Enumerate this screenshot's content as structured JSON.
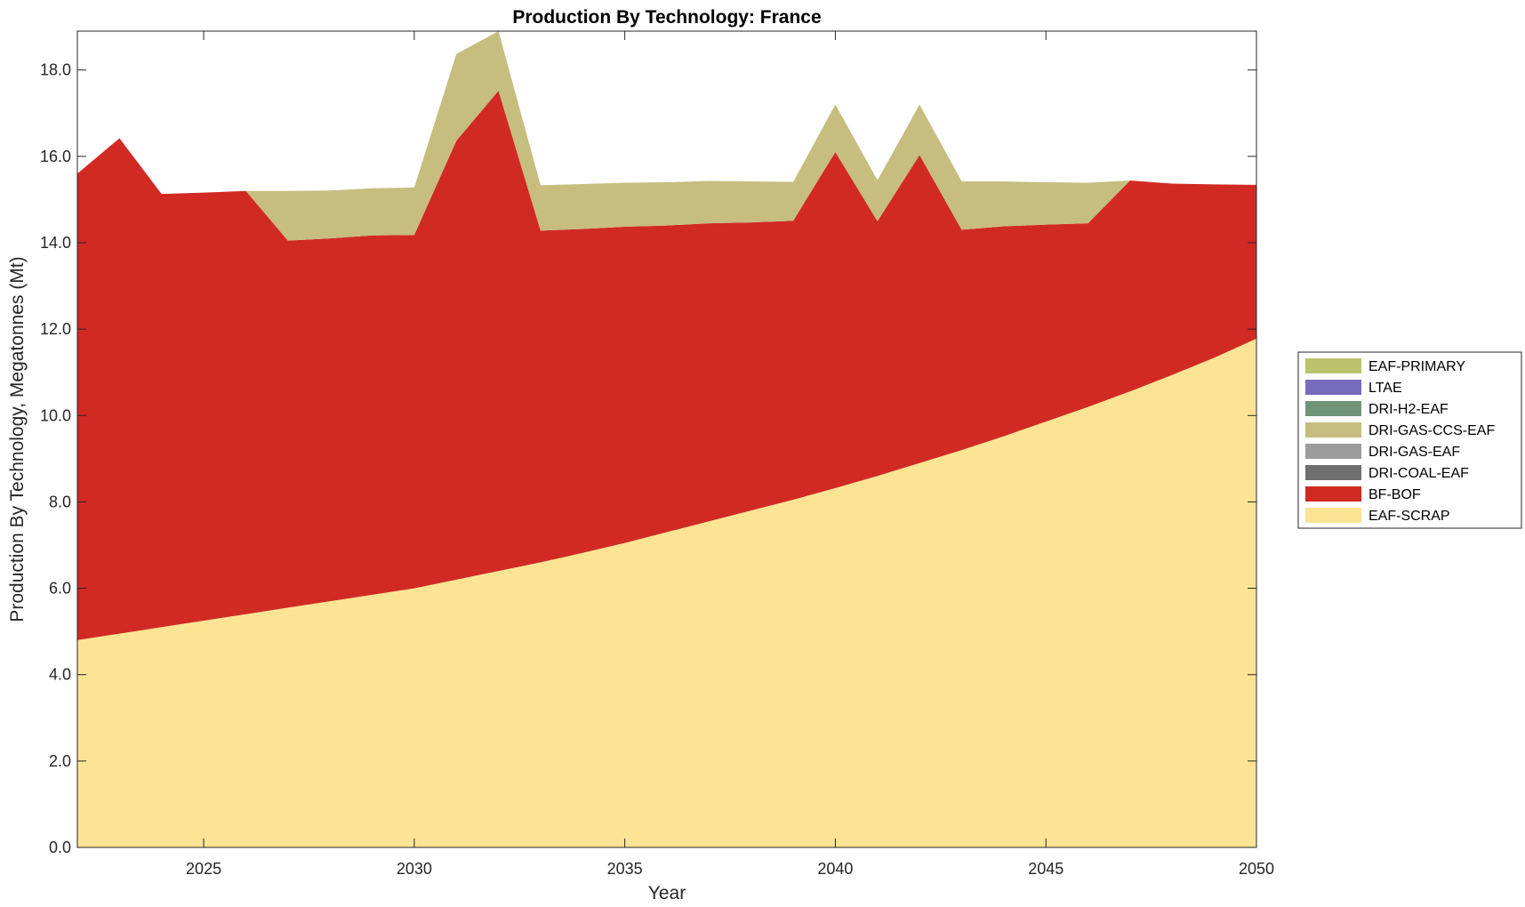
{
  "chart_data": {
    "type": "area",
    "stacked": true,
    "title": "Production By Technology: France",
    "xlabel": "Year",
    "ylabel": "Production By Technology, Megatonnes (Mt)",
    "xlim": [
      2022,
      2050
    ],
    "ylim": [
      0,
      18.9
    ],
    "xticks": [
      2025,
      2030,
      2035,
      2040,
      2045,
      2050
    ],
    "yticks": [
      0,
      2,
      4,
      6,
      8,
      10,
      12,
      14,
      16,
      18
    ],
    "ytick_labels": [
      "0.0",
      "2.0",
      "4.0",
      "6.0",
      "8.0",
      "10.0",
      "12.0",
      "14.0",
      "16.0",
      "18.0"
    ],
    "grid": false,
    "legend_position": "right",
    "x": [
      2022,
      2023,
      2024,
      2025,
      2026,
      2027,
      2028,
      2029,
      2030,
      2031,
      2032,
      2033,
      2034,
      2035,
      2036,
      2037,
      2038,
      2039,
      2040,
      2041,
      2042,
      2043,
      2044,
      2045,
      2046,
      2047,
      2048,
      2049,
      2050
    ],
    "series": [
      {
        "name": "EAF-SCRAP",
        "color": "#fde494",
        "values": [
          4.8,
          4.95,
          5.1,
          5.25,
          5.4,
          5.55,
          5.7,
          5.85,
          6.0,
          6.2,
          6.4,
          6.6,
          6.82,
          7.05,
          7.3,
          7.55,
          7.8,
          8.05,
          8.32,
          8.6,
          8.9,
          9.2,
          9.52,
          9.86,
          10.2,
          10.56,
          10.94,
          11.34,
          11.78
        ]
      },
      {
        "name": "BF-BOF",
        "color": "#d12a23",
        "values": [
          10.8,
          11.47,
          10.03,
          9.91,
          9.8,
          8.5,
          8.4,
          8.32,
          8.18,
          10.16,
          11.12,
          7.68,
          7.5,
          7.32,
          7.1,
          6.9,
          6.67,
          6.46,
          7.78,
          5.9,
          7.13,
          5.1,
          4.86,
          4.56,
          4.25,
          4.88,
          4.43,
          4.01,
          3.56
        ]
      },
      {
        "name": "DRI-COAL-EAF",
        "color": "#6f6f6f",
        "values": [
          0,
          0,
          0,
          0,
          0,
          0,
          0,
          0,
          0,
          0,
          0,
          0,
          0,
          0,
          0,
          0,
          0,
          0,
          0,
          0,
          0,
          0,
          0,
          0,
          0,
          0,
          0,
          0,
          0
        ]
      },
      {
        "name": "DRI-GAS-EAF",
        "color": "#9c9c9c",
        "values": [
          0,
          0,
          0,
          0,
          0,
          0,
          0,
          0,
          0,
          0,
          0,
          0,
          0,
          0,
          0,
          0,
          0,
          0,
          0,
          0,
          0,
          0,
          0,
          0,
          0,
          0,
          0,
          0,
          0
        ]
      },
      {
        "name": "DRI-GAS-CCS-EAF",
        "color": "#c6bd7f",
        "values": [
          0,
          0,
          0,
          0,
          0,
          1.15,
          1.11,
          1.09,
          1.1,
          2.01,
          1.38,
          1.05,
          1.04,
          1.02,
          1.0,
          0.98,
          0.95,
          0.9,
          1.1,
          0.95,
          1.17,
          1.12,
          1.04,
          0.98,
          0.94,
          0,
          0,
          0,
          0
        ]
      },
      {
        "name": "DRI-H2-EAF",
        "color": "#6f9477",
        "values": [
          0,
          0,
          0,
          0,
          0,
          0,
          0,
          0,
          0,
          0,
          0,
          0,
          0,
          0,
          0,
          0,
          0,
          0,
          0,
          0,
          0,
          0,
          0,
          0,
          0,
          0,
          0,
          0,
          0
        ]
      },
      {
        "name": "LTAE",
        "color": "#776bbd",
        "values": [
          0,
          0,
          0,
          0,
          0,
          0,
          0,
          0,
          0,
          0,
          0,
          0,
          0,
          0,
          0,
          0,
          0,
          0,
          0,
          0,
          0,
          0,
          0,
          0,
          0,
          0,
          0,
          0,
          0
        ]
      },
      {
        "name": "EAF-PRIMARY",
        "color": "#bac46d",
        "values": [
          0,
          0,
          0,
          0,
          0,
          0,
          0,
          0,
          0,
          0,
          0,
          0,
          0,
          0,
          0,
          0,
          0,
          0,
          0,
          0,
          0,
          0,
          0,
          0,
          0,
          0,
          0,
          0,
          0
        ]
      }
    ],
    "legend_order": [
      "EAF-PRIMARY",
      "LTAE",
      "DRI-H2-EAF",
      "DRI-GAS-CCS-EAF",
      "DRI-GAS-EAF",
      "DRI-COAL-EAF",
      "BF-BOF",
      "EAF-SCRAP"
    ]
  }
}
